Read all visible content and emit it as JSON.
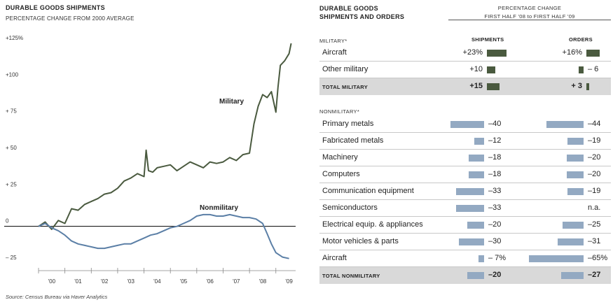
{
  "line_chart": {
    "title": "DURABLE GOODS SHIPMENTS",
    "subtitle": "PERCENTAGE CHANGE FROM 2000 AVERAGE",
    "source": "Source: Census Bureau via Haver Analytics",
    "colors": {
      "military": "#4a5a3f",
      "nonmilitary": "#5b7fa6",
      "zero_line": "#000000"
    }
  },
  "table": {
    "title_line1": "DURABLE GOODS",
    "title_line2": "SHIPMENTS AND ORDERS",
    "header_line1": "PERCENTAGE CHANGE",
    "header_line2": "FIRST HALF '08 to FIRST HALF '09",
    "military_label": "MILITARY*",
    "nonmilitary_label": "NONMILITARY*",
    "col_shipments": "SHIPMENTS",
    "col_orders": "ORDERS",
    "military_rows": [
      {
        "label": "Aircraft",
        "shipments": 23,
        "shipments_text": "+23%",
        "orders": 16,
        "orders_text": "+16%"
      },
      {
        "label": "Other military",
        "shipments": 10,
        "shipments_text": "+10",
        "orders": -6,
        "orders_text": "– 6"
      },
      {
        "label": "TOTAL MILITARY",
        "shipments": 15,
        "shipments_text": "+15",
        "orders": 3,
        "orders_text": "+ 3",
        "total": true
      }
    ],
    "nonmilitary_rows": [
      {
        "label": "Primary metals",
        "shipments": -40,
        "shipments_text": "–40",
        "orders": -44,
        "orders_text": "–44"
      },
      {
        "label": "Fabricated metals",
        "shipments": -12,
        "shipments_text": "–12",
        "orders": -19,
        "orders_text": "–19"
      },
      {
        "label": "Machinery",
        "shipments": -18,
        "shipments_text": "–18",
        "orders": -20,
        "orders_text": "–20"
      },
      {
        "label": "Computers",
        "shipments": -18,
        "shipments_text": "–18",
        "orders": -20,
        "orders_text": "–20"
      },
      {
        "label": "Communication equipment",
        "shipments": -33,
        "shipments_text": "–33",
        "orders": -19,
        "orders_text": "–19"
      },
      {
        "label": "Semiconductors",
        "shipments": -33,
        "shipments_text": "–33",
        "orders": null,
        "orders_text": "n.a."
      },
      {
        "label": "Electrical equip. & appliances",
        "shipments": -20,
        "shipments_text": "–20",
        "orders": -25,
        "orders_text": "–25"
      },
      {
        "label": "Motor vehicles & parts",
        "shipments": -30,
        "shipments_text": "–30",
        "orders": -31,
        "orders_text": "–31"
      },
      {
        "label": "Aircraft",
        "shipments": -7,
        "shipments_text": "– 7%",
        "orders": -65,
        "orders_text": "–65%"
      },
      {
        "label": "TOTAL NONMILITARY",
        "shipments": -20,
        "shipments_text": "–20",
        "orders": -27,
        "orders_text": "–27",
        "total": true
      }
    ]
  },
  "chart_data": [
    {
      "type": "line",
      "title": "DURABLE GOODS SHIPMENTS",
      "subtitle": "PERCENTAGE CHANGE FROM 2000 AVERAGE",
      "xlabel": "",
      "ylabel": "",
      "ylim": [
        -25,
        125
      ],
      "yticks": [
        -25,
        0,
        25,
        50,
        75,
        100,
        125
      ],
      "ytick_labels": [
        "– 25",
        "0",
        "+ 25",
        "+ 50",
        "+ 75",
        "+100",
        "+125%"
      ],
      "xlim": [
        2000,
        2009.75
      ],
      "xtick_labels": [
        "'00",
        "'01",
        "'02",
        "'03",
        "'04",
        "'05",
        "'06",
        "'07",
        "'08",
        "'09"
      ],
      "grid": false,
      "series": [
        {
          "name": "Military",
          "points": [
            [
              2000.0,
              0
            ],
            [
              2000.25,
              3
            ],
            [
              2000.5,
              -2
            ],
            [
              2000.75,
              4
            ],
            [
              2001.0,
              2
            ],
            [
              2001.25,
              12
            ],
            [
              2001.5,
              11
            ],
            [
              2001.75,
              15
            ],
            [
              2002.0,
              17
            ],
            [
              2002.25,
              19
            ],
            [
              2002.5,
              22
            ],
            [
              2002.75,
              23
            ],
            [
              2003.0,
              26
            ],
            [
              2003.25,
              31
            ],
            [
              2003.5,
              33
            ],
            [
              2003.75,
              36
            ],
            [
              2004.0,
              34
            ],
            [
              2004.08,
              52
            ],
            [
              2004.17,
              38
            ],
            [
              2004.33,
              37
            ],
            [
              2004.5,
              40
            ],
            [
              2004.75,
              41
            ],
            [
              2005.0,
              42
            ],
            [
              2005.25,
              38
            ],
            [
              2005.5,
              41
            ],
            [
              2005.75,
              44
            ],
            [
              2006.0,
              42
            ],
            [
              2006.25,
              40
            ],
            [
              2006.5,
              44
            ],
            [
              2006.75,
              43
            ],
            [
              2007.0,
              44
            ],
            [
              2007.25,
              47
            ],
            [
              2007.5,
              45
            ],
            [
              2007.75,
              49
            ],
            [
              2008.0,
              50
            ],
            [
              2008.17,
              70
            ],
            [
              2008.33,
              82
            ],
            [
              2008.5,
              90
            ],
            [
              2008.67,
              88
            ],
            [
              2008.83,
              92
            ],
            [
              2009.0,
              78
            ],
            [
              2009.08,
              95
            ],
            [
              2009.17,
              110
            ],
            [
              2009.33,
              113
            ],
            [
              2009.5,
              118
            ],
            [
              2009.58,
              125
            ]
          ]
        },
        {
          "name": "Nonmilitary",
          "points": [
            [
              2000.0,
              0
            ],
            [
              2000.25,
              2
            ],
            [
              2000.5,
              -1
            ],
            [
              2000.75,
              -3
            ],
            [
              2001.0,
              -6
            ],
            [
              2001.25,
              -10
            ],
            [
              2001.5,
              -12
            ],
            [
              2001.75,
              -13
            ],
            [
              2002.0,
              -14
            ],
            [
              2002.25,
              -15
            ],
            [
              2002.5,
              -15
            ],
            [
              2002.75,
              -14
            ],
            [
              2003.0,
              -13
            ],
            [
              2003.25,
              -12
            ],
            [
              2003.5,
              -12
            ],
            [
              2003.75,
              -10
            ],
            [
              2004.0,
              -8
            ],
            [
              2004.25,
              -6
            ],
            [
              2004.5,
              -5
            ],
            [
              2004.75,
              -3
            ],
            [
              2005.0,
              -1
            ],
            [
              2005.25,
              0
            ],
            [
              2005.5,
              2
            ],
            [
              2005.75,
              4
            ],
            [
              2006.0,
              7
            ],
            [
              2006.25,
              8
            ],
            [
              2006.5,
              8
            ],
            [
              2006.75,
              7
            ],
            [
              2007.0,
              7
            ],
            [
              2007.25,
              8
            ],
            [
              2007.5,
              7
            ],
            [
              2007.75,
              6
            ],
            [
              2008.0,
              6
            ],
            [
              2008.25,
              5
            ],
            [
              2008.5,
              2
            ],
            [
              2008.67,
              -5
            ],
            [
              2008.83,
              -12
            ],
            [
              2009.0,
              -18
            ],
            [
              2009.25,
              -21
            ],
            [
              2009.5,
              -22
            ]
          ]
        }
      ]
    },
    {
      "type": "bar",
      "title": "DURABLE GOODS SHIPMENTS AND ORDERS",
      "subtitle": "PERCENTAGE CHANGE FIRST HALF '08 to FIRST HALF '09",
      "categories": [
        "Aircraft",
        "Other military",
        "TOTAL MILITARY",
        "Primary metals",
        "Fabricated metals",
        "Machinery",
        "Computers",
        "Communication equipment",
        "Semiconductors",
        "Electrical equip. & appliances",
        "Motor vehicles & parts",
        "Aircraft",
        "TOTAL NONMILITARY"
      ],
      "series": [
        {
          "name": "SHIPMENTS",
          "values": [
            23,
            10,
            15,
            -40,
            -12,
            -18,
            -18,
            -33,
            -33,
            -20,
            -30,
            -7,
            -20
          ]
        },
        {
          "name": "ORDERS",
          "values": [
            16,
            -6,
            3,
            -44,
            -19,
            -20,
            -20,
            -19,
            null,
            -25,
            -31,
            -65,
            -27
          ]
        }
      ]
    }
  ]
}
